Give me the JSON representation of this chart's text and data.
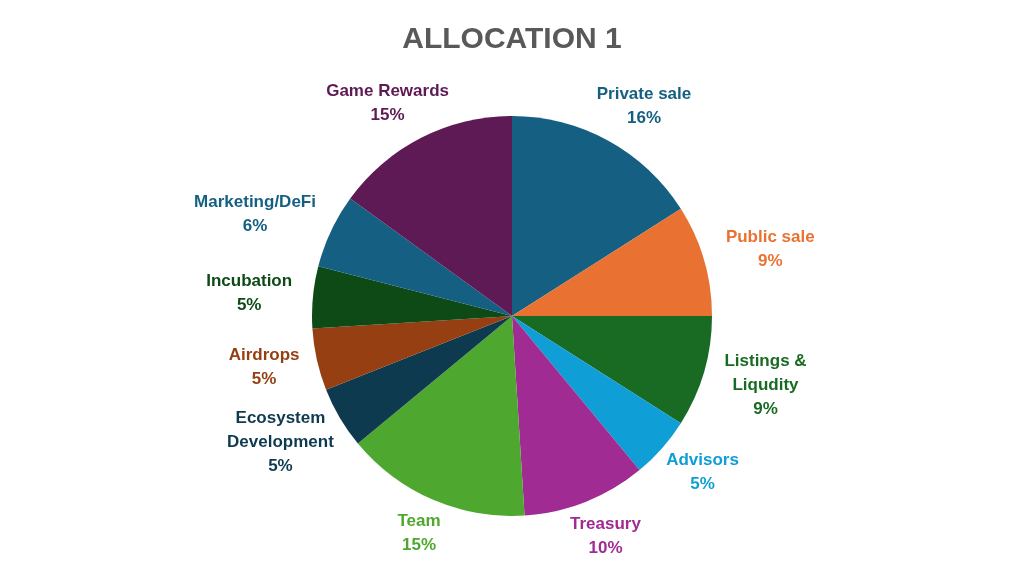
{
  "chart_data": {
    "type": "pie",
    "title": "ALLOCATION 1",
    "categories": [
      "Private sale",
      "Public sale",
      "Listings & Liqudity",
      "Advisors",
      "Treasury",
      "Team",
      "Ecosystem Development",
      "Airdrops",
      "Incubation",
      "Marketing/DeFi",
      "Game Rewards"
    ],
    "values": [
      16,
      9,
      9,
      5,
      10,
      15,
      5,
      5,
      5,
      6,
      15
    ],
    "colors": [
      "#156082",
      "#e97132",
      "#196b24",
      "#0f9ed5",
      "#a02b93",
      "#4ea72e",
      "#0e3a4f",
      "#953f12",
      "#0d4a16",
      "#145f82",
      "#5e1a55"
    ],
    "value_labels": [
      "16%",
      "9%",
      "9%",
      "5%",
      "10%",
      "15%",
      "5%",
      "5%",
      "5%",
      "6%",
      "15%"
    ]
  }
}
